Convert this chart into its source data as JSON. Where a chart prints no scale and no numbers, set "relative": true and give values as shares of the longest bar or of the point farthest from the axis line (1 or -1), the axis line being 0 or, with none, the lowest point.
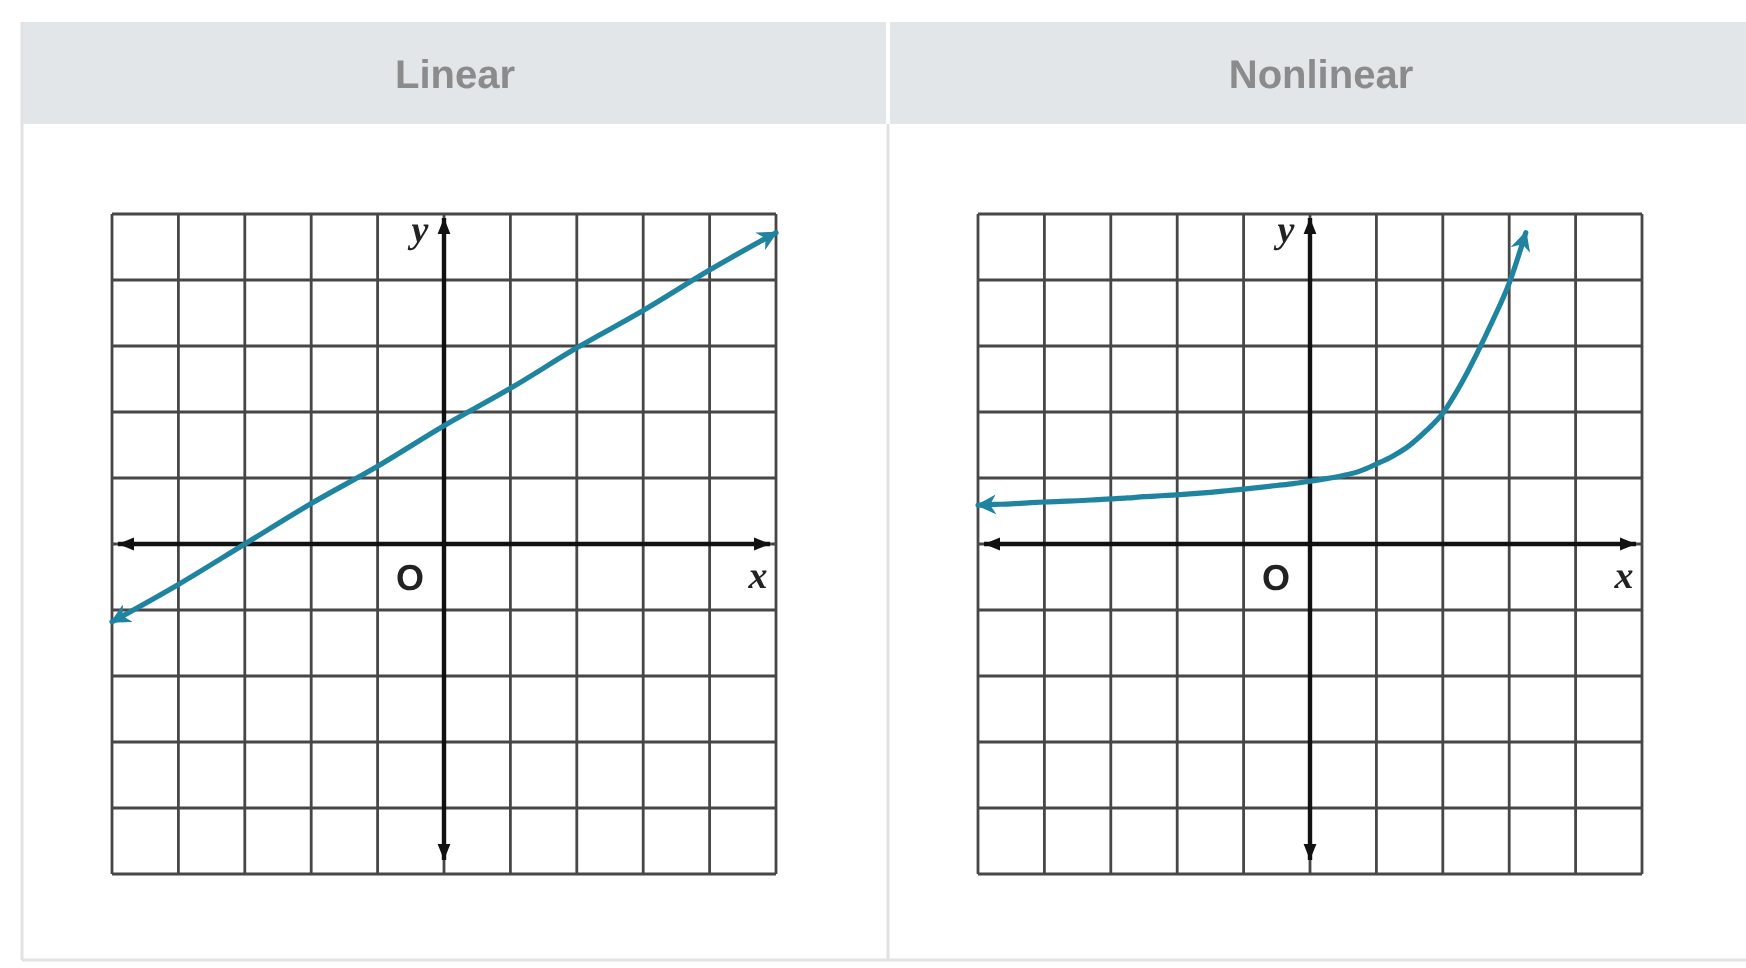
{
  "chart_data": [
    {
      "type": "line",
      "title": "Linear",
      "xlabel": "x",
      "ylabel": "y",
      "relative": true,
      "grid": true,
      "annotations": [
        "O"
      ],
      "categories": [
        null,
        null,
        null,
        null,
        null,
        null,
        null,
        null,
        null,
        null,
        null
      ],
      "series": [
        {
          "color": "#1f84a0",
          "values": [
            -0.25,
            -0.13,
            0,
            0.13,
            0.25,
            0.38,
            0.5,
            0.63,
            0.75,
            0.88,
            1
          ]
        }
      ]
    },
    {
      "type": "line",
      "title": "Nonlinear",
      "xlabel": "x",
      "ylabel": "y",
      "relative": true,
      "grid": true,
      "annotations": [
        "O"
      ],
      "categories": [
        null,
        null,
        null,
        null,
        null,
        null,
        null,
        null,
        null,
        null,
        null,
        null,
        null,
        null,
        null,
        null,
        null,
        null,
        null,
        null,
        null,
        null,
        null,
        null,
        null,
        null,
        null,
        null,
        null,
        null,
        null,
        null,
        null,
        null,
        null,
        null,
        null,
        null,
        null,
        null,
        null
      ],
      "series": [
        {
          "color": "#1f84a0",
          "values": [
            0.125,
            0.127,
            0.129,
            0.132,
            0.135,
            0.137,
            0.139,
            0.142,
            0.145,
            0.148,
            0.152,
            0.155,
            0.158,
            0.162,
            0.166,
            0.171,
            0.176,
            0.182,
            0.188,
            0.194,
            0.202,
            0.21,
            0.22,
            0.234,
            0.257,
            0.283,
            0.317,
            0.364,
            0.42,
            0.505,
            0.606,
            0.717,
            0.838,
            1,
            null,
            null,
            null,
            null,
            null,
            null,
            null
          ]
        }
      ]
    }
  ]
}
